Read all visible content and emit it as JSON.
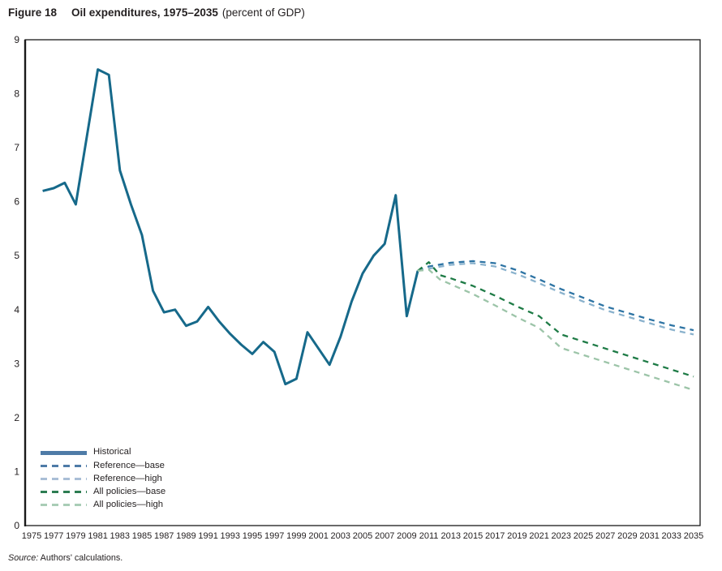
{
  "title": {
    "figure_label": "Figure 18",
    "text": "Oil expenditures, 1975–2035",
    "subtitle": "(percent of GDP)"
  },
  "source": {
    "prefix": "Source:",
    "text": " Authors' calculations."
  },
  "legend": {
    "items": [
      {
        "label": "Historical",
        "swatch_color": "#4e7ba7",
        "dashed": false
      },
      {
        "label": "Reference—base",
        "swatch_color": "#4e7ba7",
        "dashed": true
      },
      {
        "label": "Reference—high",
        "swatch_color": "#a9bed6",
        "dashed": true
      },
      {
        "label": "All policies—base",
        "swatch_color": "#2d7d52",
        "dashed": true
      },
      {
        "label": "All policies—high",
        "swatch_color": "#a9cdb6",
        "dashed": true
      }
    ]
  },
  "chart_data": {
    "type": "line",
    "title": "Oil expenditures, 1975–2035 (percent of GDP)",
    "xlabel": "",
    "ylabel": "",
    "x_range": [
      1975,
      2035
    ],
    "y_range": [
      0,
      9
    ],
    "grid": false,
    "legend_position": "bottom-left",
    "x_ticks": [
      "1975",
      "1977",
      "1979",
      "1981",
      "1983",
      "1985",
      "1987",
      "1989",
      "1991",
      "1993",
      "1995",
      "1997",
      "1999",
      "2001",
      "2003",
      "2005",
      "2007",
      "2009",
      "2011",
      "2013",
      "2015",
      "2017",
      "2019",
      "2021",
      "2023",
      "2025",
      "2027",
      "2029",
      "2031",
      "2033",
      "2035"
    ],
    "y_ticks": [
      "0",
      "1",
      "2",
      "3",
      "4",
      "5",
      "6",
      "7",
      "8",
      "9"
    ],
    "series": [
      {
        "name": "Historical",
        "color": "#16698a",
        "line_style": "solid",
        "width": 3,
        "points": [
          [
            1976,
            6.2
          ],
          [
            1977,
            6.25
          ],
          [
            1978,
            6.35
          ],
          [
            1979,
            5.95
          ],
          [
            1980,
            7.2
          ],
          [
            1981,
            8.45
          ],
          [
            1982,
            8.35
          ],
          [
            1983,
            6.58
          ],
          [
            1984,
            5.95
          ],
          [
            1985,
            5.38
          ],
          [
            1986,
            4.35
          ],
          [
            1987,
            3.95
          ],
          [
            1988,
            4.0
          ],
          [
            1989,
            3.7
          ],
          [
            1990,
            3.78
          ],
          [
            1991,
            4.05
          ],
          [
            1992,
            3.78
          ],
          [
            1993,
            3.55
          ],
          [
            1994,
            3.35
          ],
          [
            1995,
            3.18
          ],
          [
            1996,
            3.4
          ],
          [
            1997,
            3.22
          ],
          [
            1998,
            2.62
          ],
          [
            1999,
            2.72
          ],
          [
            2000,
            3.58
          ],
          [
            2001,
            3.28
          ],
          [
            2002,
            2.98
          ],
          [
            2003,
            3.5
          ],
          [
            2004,
            4.15
          ],
          [
            2005,
            4.67
          ],
          [
            2006,
            5.0
          ],
          [
            2007,
            5.22
          ],
          [
            2008,
            6.12
          ],
          [
            2009,
            3.88
          ],
          [
            2010,
            4.72
          ]
        ]
      },
      {
        "name": "Reference—base",
        "color": "#2e74a4",
        "line_style": "dashed",
        "width": 2.3,
        "points": [
          [
            2010,
            4.72
          ],
          [
            2011,
            4.8
          ],
          [
            2013,
            4.87
          ],
          [
            2015,
            4.9
          ],
          [
            2017,
            4.86
          ],
          [
            2019,
            4.73
          ],
          [
            2021,
            4.56
          ],
          [
            2023,
            4.38
          ],
          [
            2025,
            4.22
          ],
          [
            2027,
            4.06
          ],
          [
            2029,
            3.94
          ],
          [
            2031,
            3.82
          ],
          [
            2033,
            3.71
          ],
          [
            2035,
            3.62
          ]
        ]
      },
      {
        "name": "Reference—high",
        "color": "#8ab2cd",
        "line_style": "dashed",
        "width": 2.3,
        "points": [
          [
            2010,
            4.72
          ],
          [
            2011,
            4.76
          ],
          [
            2013,
            4.83
          ],
          [
            2015,
            4.86
          ],
          [
            2017,
            4.8
          ],
          [
            2019,
            4.66
          ],
          [
            2021,
            4.49
          ],
          [
            2023,
            4.31
          ],
          [
            2025,
            4.15
          ],
          [
            2027,
            3.99
          ],
          [
            2029,
            3.87
          ],
          [
            2031,
            3.75
          ],
          [
            2033,
            3.63
          ],
          [
            2035,
            3.54
          ]
        ]
      },
      {
        "name": "All policies—base",
        "color": "#1e7b46",
        "line_style": "dashed",
        "width": 2.3,
        "points": [
          [
            2010,
            4.72
          ],
          [
            2011,
            4.88
          ],
          [
            2012,
            4.64
          ],
          [
            2013,
            4.58
          ],
          [
            2015,
            4.44
          ],
          [
            2017,
            4.26
          ],
          [
            2019,
            4.06
          ],
          [
            2021,
            3.88
          ],
          [
            2023,
            3.54
          ],
          [
            2025,
            3.41
          ],
          [
            2027,
            3.28
          ],
          [
            2029,
            3.15
          ],
          [
            2031,
            3.02
          ],
          [
            2033,
            2.89
          ],
          [
            2035,
            2.76
          ]
        ]
      },
      {
        "name": "All policies—high",
        "color": "#9cc4a8",
        "line_style": "dashed",
        "width": 2.3,
        "points": [
          [
            2010,
            4.72
          ],
          [
            2011,
            4.74
          ],
          [
            2012,
            4.56
          ],
          [
            2013,
            4.47
          ],
          [
            2015,
            4.29
          ],
          [
            2017,
            4.08
          ],
          [
            2019,
            3.86
          ],
          [
            2021,
            3.66
          ],
          [
            2023,
            3.29
          ],
          [
            2025,
            3.16
          ],
          [
            2027,
            3.03
          ],
          [
            2029,
            2.9
          ],
          [
            2031,
            2.77
          ],
          [
            2033,
            2.64
          ],
          [
            2035,
            2.51
          ]
        ]
      }
    ]
  }
}
